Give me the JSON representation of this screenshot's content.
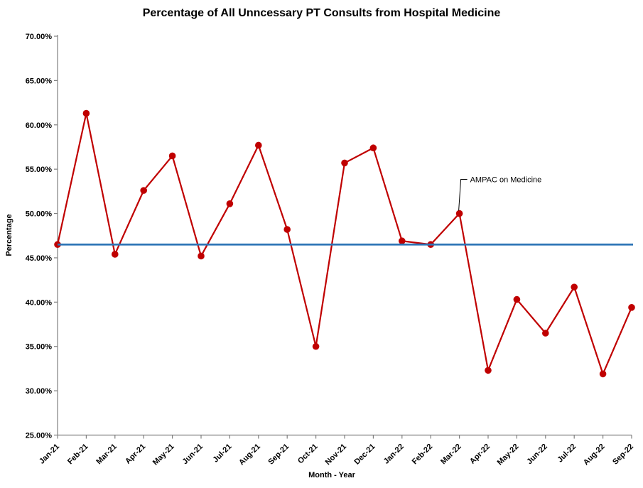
{
  "chart_data": {
    "type": "line",
    "title": "Percentage of All Unncessary PT Consults from Hospital Medicine",
    "xlabel": "Month - Year",
    "ylabel": "Percentage",
    "categories": [
      "Jan-21",
      "Feb-21",
      "Mar-21",
      "Apr-21",
      "May-21",
      "Jun-21",
      "Jul-21",
      "Aug-21",
      "Sep-21",
      "Oct-21",
      "Nov-21",
      "Dec-21",
      "Jan-22",
      "Feb-22",
      "Mar-22",
      "Apr-22",
      "May-22",
      "Jun-22",
      "Jul-22",
      "Aug-22",
      "Sep-22"
    ],
    "values": [
      46.5,
      61.3,
      45.4,
      52.6,
      56.5,
      45.2,
      51.1,
      57.7,
      48.2,
      35.0,
      55.7,
      57.4,
      46.9,
      46.5,
      50.0,
      32.3,
      40.3,
      36.5,
      41.7,
      31.9,
      39.4
    ],
    "ylim": [
      25,
      70
    ],
    "y_tick_step": 5,
    "y_tick_labels": [
      "70.00%",
      "65.00%",
      "60.00%",
      "55.00%",
      "50.00%",
      "45.00%",
      "40.00%",
      "35.00%",
      "30.00%",
      "25.00%"
    ],
    "grid": false,
    "legend": false,
    "marker": "circle",
    "series_color": "#C00000",
    "axis_color": "#808080",
    "text_color": "#000000",
    "reference_line": {
      "value": 46.5,
      "color": "#2E75B6"
    },
    "annotation": {
      "text": "AMPAC on Medicine",
      "target_category": "Mar-22"
    }
  }
}
